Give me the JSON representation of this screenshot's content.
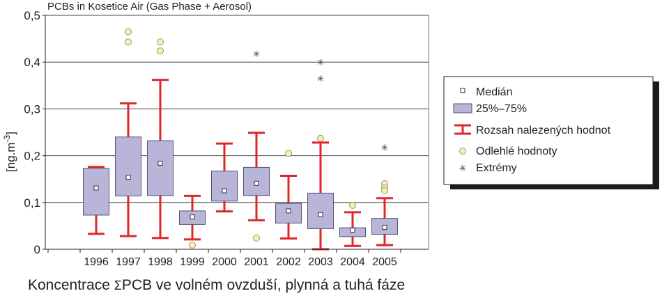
{
  "chart_data": {
    "type": "box",
    "title": "PCBs in Kosetice Air (Gas Phase + Aerosol)",
    "ylabel_base": "[ng.m",
    "ylabel_sup": "-3",
    "ylabel_end": "]",
    "ylim": [
      0,
      0.5
    ],
    "yticks": [
      "0",
      "0,1",
      "0,2",
      "0,3",
      "0,4",
      "0,5"
    ],
    "ytick_values": [
      0,
      0.1,
      0.2,
      0.3,
      0.4,
      0.5
    ],
    "grid": true,
    "categories": [
      "1996",
      "1997",
      "1998",
      "1999",
      "2000",
      "2001",
      "2002",
      "2003",
      "2004",
      "2005"
    ],
    "boxes": [
      {
        "year": "1996",
        "min": 0.033,
        "q1": 0.073,
        "median": 0.131,
        "q3": 0.173,
        "max": 0.176,
        "outliers": [],
        "extremes": []
      },
      {
        "year": "1997",
        "min": 0.028,
        "q1": 0.114,
        "median": 0.154,
        "q3": 0.24,
        "max": 0.312,
        "outliers": [
          0.465,
          0.443
        ],
        "extremes": []
      },
      {
        "year": "1998",
        "min": 0.024,
        "q1": 0.115,
        "median": 0.184,
        "q3": 0.232,
        "max": 0.362,
        "outliers": [
          0.443,
          0.424
        ],
        "extremes": []
      },
      {
        "year": "1999",
        "min": 0.021,
        "q1": 0.053,
        "median": 0.069,
        "q3": 0.082,
        "max": 0.114,
        "outliers": [
          0.009
        ],
        "extremes": []
      },
      {
        "year": "2000",
        "min": 0.081,
        "q1": 0.103,
        "median": 0.125,
        "q3": 0.167,
        "max": 0.226,
        "outliers": [],
        "extremes": []
      },
      {
        "year": "2001",
        "min": 0.062,
        "q1": 0.115,
        "median": 0.141,
        "q3": 0.175,
        "max": 0.249,
        "outliers": [
          0.024
        ],
        "extremes": [
          0.418
        ]
      },
      {
        "year": "2002",
        "min": 0.023,
        "q1": 0.056,
        "median": 0.082,
        "q3": 0.098,
        "max": 0.157,
        "outliers": [
          0.205
        ],
        "extremes": []
      },
      {
        "year": "2003",
        "min": 0.0,
        "q1": 0.044,
        "median": 0.074,
        "q3": 0.12,
        "max": 0.228,
        "outliers": [
          0.237
        ],
        "extremes": [
          0.4,
          0.365
        ]
      },
      {
        "year": "2004",
        "min": 0.007,
        "q1": 0.027,
        "median": 0.041,
        "q3": 0.046,
        "max": 0.079,
        "outliers": [
          0.094
        ],
        "extremes": []
      },
      {
        "year": "2005",
        "min": 0.009,
        "q1": 0.032,
        "median": 0.047,
        "q3": 0.066,
        "max": 0.109,
        "outliers": [
          0.14,
          0.131,
          0.125
        ],
        "extremes": [
          0.218
        ]
      }
    ],
    "legend": {
      "placement": "right",
      "items": {
        "median": "Medián",
        "box": "25%–75%",
        "range": "Rozsah nalezených hodnot",
        "outliers": "Odlehlé hodnoty",
        "extremes": "Extrémy"
      }
    },
    "colors": {
      "box_fill": "#b9b5d8",
      "box_stroke": "#55517a",
      "whisker": "#e0262a",
      "outlier_fill": "#f7f0b4",
      "outlier_stroke": "#9d9670",
      "grid": "#444444",
      "legend_shadow": "#1a1a1a"
    }
  },
  "caption": {
    "prefix": "Koncentrace ",
    "sigma": "Σ",
    "rest": "PCB ve volném ovzduší, plynná a tuhá fáze"
  }
}
